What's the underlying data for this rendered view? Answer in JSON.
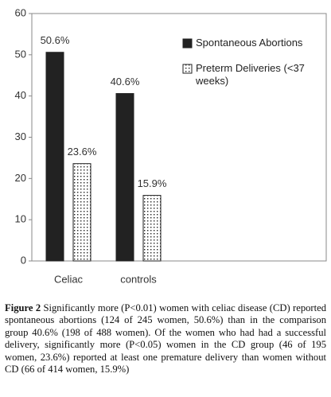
{
  "chart_data": {
    "type": "bar",
    "categories": [
      "Celiac",
      "controls",
      null,
      null
    ],
    "series": [
      {
        "name": "Spontaneous Abortions",
        "color": "#222222",
        "pattern": "solid",
        "values": [
          50.6,
          40.6,
          null,
          null
        ],
        "value_labels": [
          "50.6%",
          "40.6%",
          null,
          null
        ]
      },
      {
        "name": "Preterm Deliveries (<37 weeks)",
        "color": "#222222",
        "pattern": "dots",
        "values": [
          23.6,
          15.9,
          null,
          null
        ],
        "value_labels": [
          "23.6%",
          "15.9%",
          null,
          null
        ]
      }
    ],
    "ylim": [
      0,
      60
    ],
    "yticks": [
      0,
      10,
      20,
      30,
      40,
      50,
      60
    ],
    "grid": false,
    "legend": "upper right"
  },
  "caption": {
    "label": "Figure 2",
    "text": "Significantly more (P<0.01) women with celiac disease (CD) reported spontaneous abortions (124 of 245 women, 50.6%) than in the comparison group 40.6% (198 of 488 women). Of the women who had had a successful delivery, significantly more (P<0.05) women in the CD group (46 of 195 women, 23.6%) reported at least one premature delivery than women without CD (66 of 414 women, 15.9%)"
  }
}
